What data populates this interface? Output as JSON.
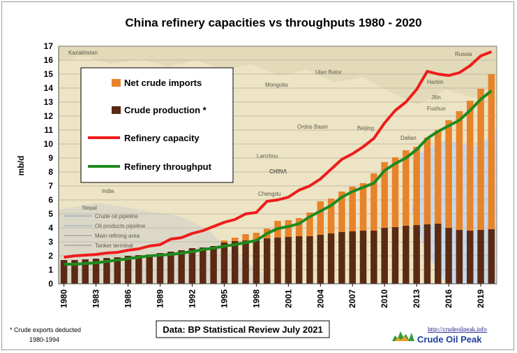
{
  "chart_data": {
    "type": "bar",
    "title": "China  refinery capacities  vs throughputs  1980 - 2020",
    "ylabel": "mb/d",
    "ylim": [
      0,
      17
    ],
    "yticks": [
      0,
      1,
      2,
      3,
      4,
      5,
      6,
      7,
      8,
      9,
      10,
      11,
      12,
      13,
      14,
      15,
      16,
      17
    ],
    "x": [
      1980,
      1981,
      1982,
      1983,
      1984,
      1985,
      1986,
      1987,
      1988,
      1989,
      1990,
      1991,
      1992,
      1993,
      1994,
      1995,
      1996,
      1997,
      1998,
      1999,
      2000,
      2001,
      2002,
      2003,
      2004,
      2005,
      2006,
      2007,
      2008,
      2009,
      2010,
      2011,
      2012,
      2013,
      2014,
      2015,
      2016,
      2017,
      2018,
      2019,
      2020
    ],
    "xtick_labels": [
      "1980",
      "1983",
      "1986",
      "1989",
      "1992",
      "1995",
      "1998",
      "2001",
      "2004",
      "2007",
      "2010",
      "2013",
      "2016",
      "2019"
    ],
    "stacked_bars": [
      {
        "name": "Net crude imports",
        "color": "#e8832a",
        "values": [
          0,
          0,
          0,
          0,
          0,
          0,
          0,
          0,
          0,
          0,
          0,
          0,
          0,
          0,
          0,
          0.15,
          0.25,
          0.45,
          0.5,
          0.7,
          1.2,
          1.2,
          1.3,
          1.7,
          2.4,
          2.5,
          2.9,
          3.2,
          3.4,
          4.1,
          4.7,
          5.0,
          5.4,
          5.6,
          6.2,
          6.7,
          7.7,
          8.5,
          9.3,
          10.1,
          11.1
        ]
      },
      {
        "name": "Crude production *",
        "color": "#5a2a14",
        "values": [
          1.7,
          1.7,
          1.75,
          1.8,
          1.85,
          1.9,
          2.0,
          2.05,
          2.1,
          2.2,
          2.3,
          2.4,
          2.55,
          2.6,
          2.7,
          2.95,
          3.05,
          3.1,
          3.15,
          3.25,
          3.3,
          3.35,
          3.4,
          3.4,
          3.5,
          3.6,
          3.7,
          3.75,
          3.8,
          3.8,
          4.0,
          4.05,
          4.15,
          4.2,
          4.25,
          4.3,
          4.0,
          3.85,
          3.8,
          3.85,
          3.9
        ]
      }
    ],
    "lines": [
      {
        "name": "Refinery capacity",
        "color": "#ee1c1c",
        "values": [
          1.9,
          2.0,
          2.05,
          2.1,
          2.2,
          2.25,
          2.4,
          2.5,
          2.7,
          2.8,
          3.2,
          3.3,
          3.6,
          3.8,
          4.1,
          4.4,
          4.6,
          5.0,
          5.1,
          5.9,
          6.0,
          6.2,
          6.7,
          7.0,
          7.5,
          8.2,
          8.9,
          9.3,
          9.8,
          10.4,
          11.5,
          12.4,
          13.0,
          13.9,
          15.2,
          15.0,
          14.9,
          15.1,
          15.6,
          16.3,
          16.6
        ]
      },
      {
        "name": "Refinery throughput",
        "color": "#1e8a1e",
        "values": [
          1.4,
          1.4,
          1.45,
          1.5,
          1.6,
          1.7,
          1.8,
          1.9,
          2.0,
          2.05,
          2.1,
          2.2,
          2.3,
          2.45,
          2.55,
          2.7,
          2.8,
          2.95,
          3.1,
          3.6,
          3.95,
          4.1,
          4.3,
          4.8,
          5.2,
          5.6,
          6.2,
          6.6,
          6.9,
          7.2,
          8.1,
          8.6,
          9.0,
          9.6,
          10.4,
          10.9,
          11.3,
          11.7,
          12.4,
          13.2,
          13.8
        ]
      }
    ],
    "legend": {
      "placement": "top-left",
      "entries": [
        "Net crude imports",
        "Crude production *",
        "Refinery capacity",
        "Refinery throughput"
      ]
    },
    "footnote": "* Crude exports deducted",
    "footnote2": "1980-1994",
    "source": "Data: BP Statistical Review July 2021",
    "logo_url": "http://crudeoilpeak.info",
    "logo_name": "Crude Oil Peak"
  },
  "map_labels": {
    "russia": "Russia",
    "kazakhstan": "Kazakhstan",
    "mongolia": "Mongolia",
    "ulan_bator": "Ulan Bator",
    "harbin": "Harbin",
    "jilin": "Jilin",
    "fushun": "Fushun",
    "beijing": "Beijing",
    "dalian": "Dalian",
    "ordos": "Ordos Basin",
    "lanzhou": "Lanzhou",
    "china": "CHINA",
    "chengdu": "Chengdu",
    "india": "India",
    "nepal": "Nepal",
    "legend1": "Crude oil pipeline",
    "legend2": "Oil products pipeline",
    "legend3": "Main refining area",
    "legend4": "Tanker terminal"
  }
}
